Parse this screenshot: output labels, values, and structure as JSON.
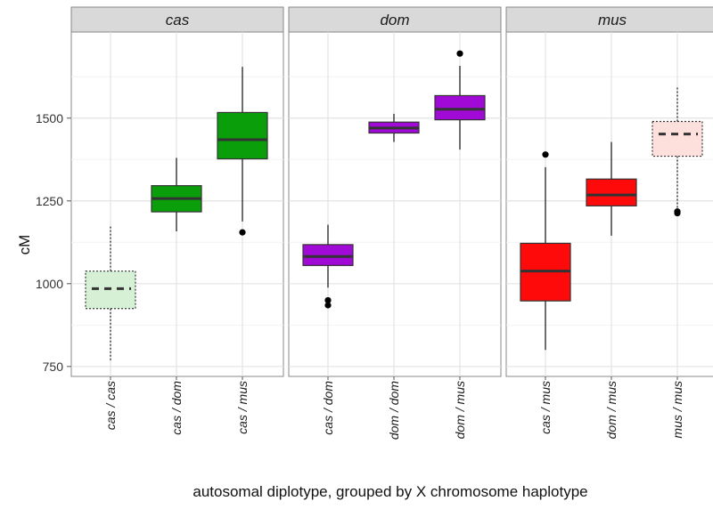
{
  "chart_data": {
    "type": "boxplot",
    "ylabel": "cM",
    "xlabel": "autosomal diplotype, grouped by X chromosome haplotype",
    "ylim": [
      720,
      1760
    ],
    "yticks": [
      750,
      1000,
      1250,
      1500
    ],
    "grid": true,
    "facets": [
      {
        "label": "cas",
        "boxes": [
          {
            "category": "cas / cas",
            "min": 765,
            "q1": 925,
            "median": 985,
            "q3": 1038,
            "max": 1178,
            "outliers": [],
            "fill": "#d5f0d5",
            "style": "dotted"
          },
          {
            "category": "cas / dom",
            "min": 1158,
            "q1": 1217,
            "median": 1257,
            "q3": 1296,
            "max": 1380,
            "outliers": [],
            "fill": "#0a9e0a",
            "style": "solid"
          },
          {
            "category": "cas / mus",
            "min": 1188,
            "q1": 1377,
            "median": 1435,
            "q3": 1517,
            "max": 1655,
            "outliers": [
              1155
            ],
            "fill": "#0a9e0a",
            "style": "solid"
          }
        ]
      },
      {
        "label": "dom",
        "boxes": [
          {
            "category": "cas / dom",
            "min": 988,
            "q1": 1055,
            "median": 1082,
            "q3": 1118,
            "max": 1178,
            "outliers": [
              950,
              935
            ],
            "fill": "#a10ad6",
            "style": "solid"
          },
          {
            "category": "dom / dom",
            "min": 1428,
            "q1": 1455,
            "median": 1470,
            "q3": 1488,
            "max": 1513,
            "outliers": [],
            "fill": "#a10ad6",
            "style": "solid"
          },
          {
            "category": "dom / mus",
            "min": 1405,
            "q1": 1495,
            "median": 1527,
            "q3": 1568,
            "max": 1658,
            "outliers": [
              1695
            ],
            "fill": "#a10ad6",
            "style": "solid"
          }
        ]
      },
      {
        "label": "mus",
        "boxes": [
          {
            "category": "cas / mus",
            "min": 800,
            "q1": 948,
            "median": 1038,
            "q3": 1122,
            "max": 1352,
            "outliers": [
              1390
            ],
            "fill": "#ff0a0a",
            "style": "solid"
          },
          {
            "category": "dom / mus",
            "min": 1145,
            "q1": 1235,
            "median": 1268,
            "q3": 1316,
            "max": 1428,
            "outliers": [],
            "fill": "#ff0a0a",
            "style": "solid"
          },
          {
            "category": "mus / mus",
            "min": 1222,
            "q1": 1385,
            "median": 1452,
            "q3": 1490,
            "max": 1592,
            "outliers": [
              1218,
              1213
            ],
            "fill": "#fde0dc",
            "style": "dotted"
          }
        ]
      }
    ]
  }
}
